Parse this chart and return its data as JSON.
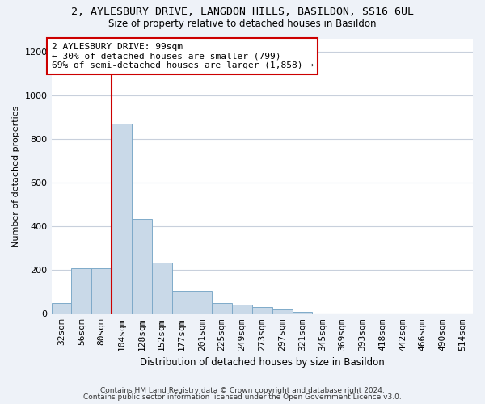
{
  "title": "2, AYLESBURY DRIVE, LANGDON HILLS, BASILDON, SS16 6UL",
  "subtitle": "Size of property relative to detached houses in Basildon",
  "xlabel": "Distribution of detached houses by size in Basildon",
  "ylabel": "Number of detached properties",
  "bins": [
    "32sqm",
    "56sqm",
    "80sqm",
    "104sqm",
    "128sqm",
    "152sqm",
    "177sqm",
    "201sqm",
    "225sqm",
    "249sqm",
    "273sqm",
    "297sqm",
    "321sqm",
    "345sqm",
    "369sqm",
    "393sqm",
    "418sqm",
    "442sqm",
    "466sqm",
    "490sqm",
    "514sqm"
  ],
  "values": [
    50,
    210,
    210,
    870,
    435,
    235,
    105,
    105,
    48,
    40,
    30,
    20,
    10,
    0,
    0,
    0,
    0,
    0,
    0,
    0,
    0
  ],
  "bar_color": "#c9d9e8",
  "bar_edge_color": "#7eaac9",
  "vline_color": "#cc0000",
  "annotation_text": "2 AYLESBURY DRIVE: 99sqm\n← 30% of detached houses are smaller (799)\n69% of semi-detached houses are larger (1,858) →",
  "annotation_box_color": "white",
  "annotation_box_edge_color": "#cc0000",
  "ylim": [
    0,
    1260
  ],
  "yticks": [
    0,
    200,
    400,
    600,
    800,
    1000,
    1200
  ],
  "footer_line1": "Contains HM Land Registry data © Crown copyright and database right 2024.",
  "footer_line2": "Contains public sector information licensed under the Open Government Licence v3.0.",
  "bg_color": "#eef2f8",
  "plot_bg_color": "white",
  "grid_color": "#c8d0dc"
}
